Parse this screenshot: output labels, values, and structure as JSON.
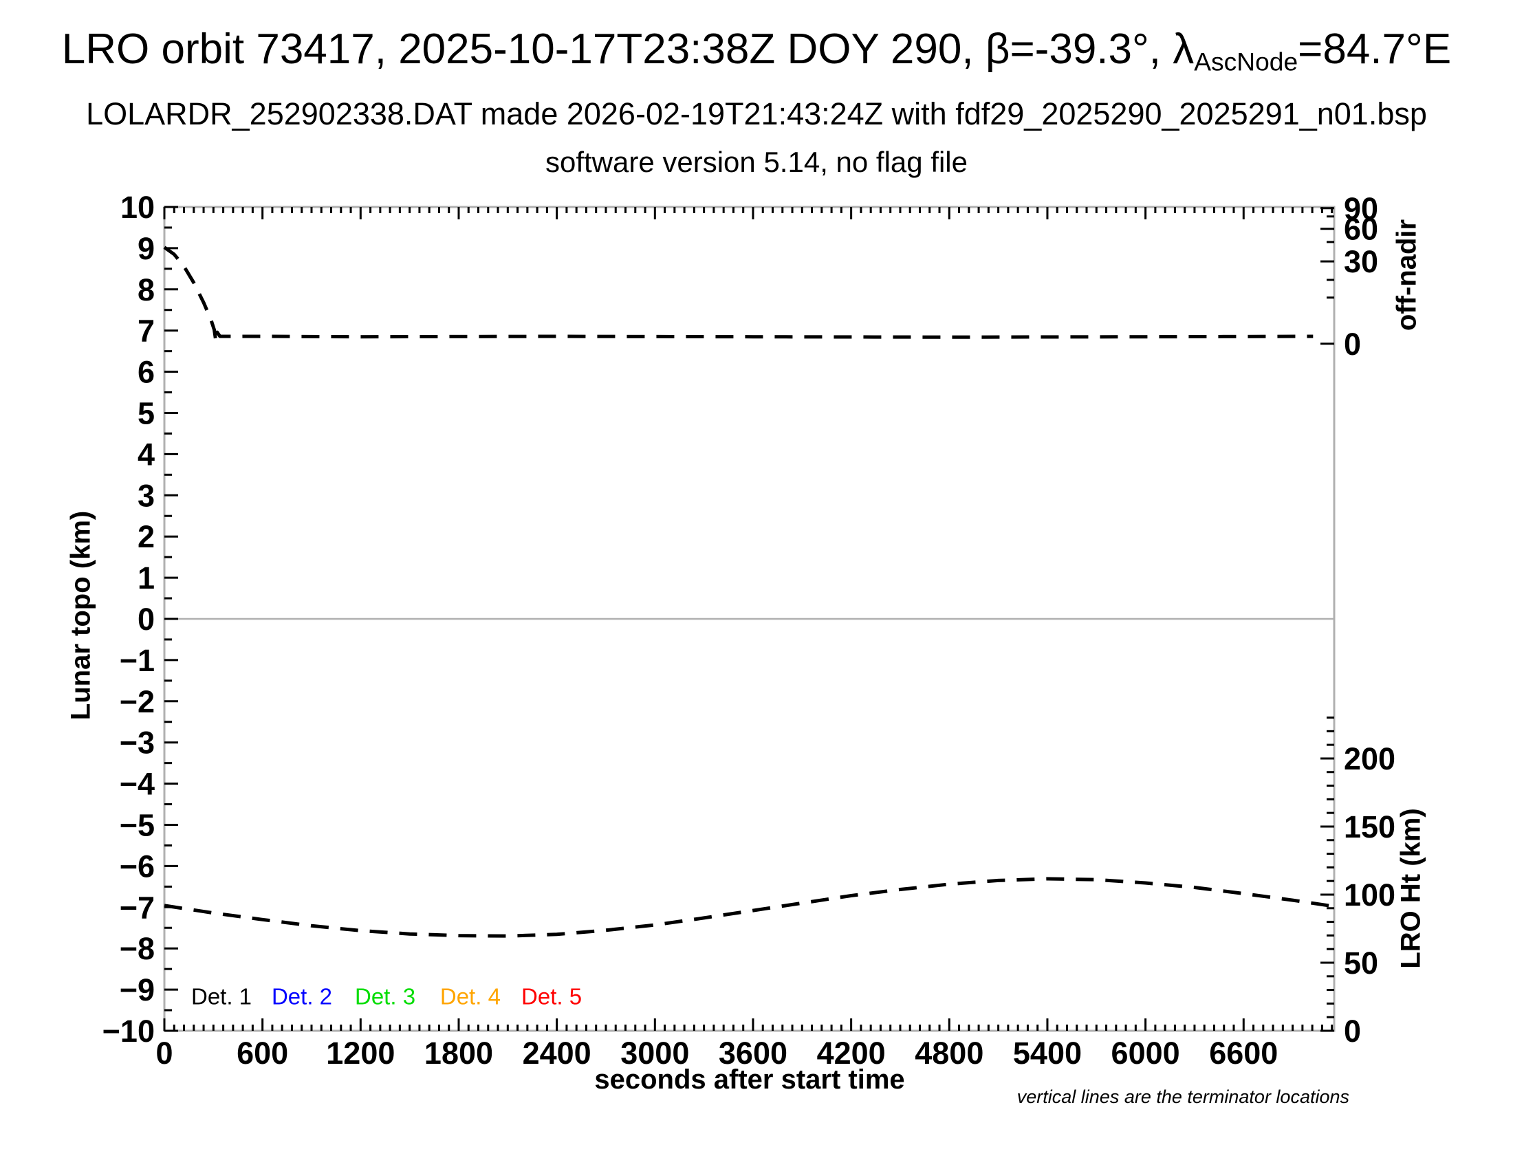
{
  "header": {
    "title_prefix": "LRO orbit 73417, 2025-10-17T23:38Z DOY 290, β=-39.3°, λ",
    "title_subscript": "AscNode",
    "title_suffix": "=84.7°E",
    "subtitle1": "LOLARDR_252902338.DAT made 2026-02-19T21:43:24Z with fdf29_2025290_2025291_n01.bsp",
    "subtitle2": "software version 5.14, no flag file"
  },
  "footnote": "vertical lines are the terminator locations",
  "chart_data": {
    "type": "line",
    "title": "LRO orbit 73417, 2025-10-17T23:38Z DOY 290, beta=-39.3deg, lambda_AscNode=84.7degE",
    "xlabel": "seconds after start time",
    "ylabel_left": "Lunar topo (km)",
    "ylabel_right_top": "off-nadir",
    "ylabel_right_bottom": "LRO Ht (km)",
    "xlim": [
      0,
      7154
    ],
    "ylim_left": [
      -10,
      10
    ],
    "grid": "zero-line-only",
    "frame_color": "#b0b0b0",
    "tick_color": "#000000",
    "x_major_ticks": [
      0,
      600,
      1200,
      1800,
      2400,
      3000,
      3600,
      4200,
      4800,
      5400,
      6000,
      6600
    ],
    "x_minor_step_s": 60,
    "left_major_step_km": 1,
    "left_minor_step_km": 0.5,
    "off_nadir_axis": {
      "note": "nonlinear angle scale on upper right axis; tick positions given in left-axis km units",
      "major_ticks": [
        {
          "label": "90",
          "pos_km": 9.97
        },
        {
          "label": "60",
          "pos_km": 9.47
        },
        {
          "label": "30",
          "pos_km": 8.68
        },
        {
          "label": "0",
          "pos_km": 6.68
        }
      ],
      "minor_tick_pos_km": [
        9.77,
        9.15,
        8.23,
        7.8
      ]
    },
    "lro_ht_axis": {
      "note": "lower right axis, linear; Ht 0 km maps to left-axis -10 km, scale 0.03306 left-km per Ht-km",
      "major_ticks_km": [
        200,
        150,
        100,
        50,
        0
      ],
      "minor_step_km": 10,
      "minor_max_km": 230,
      "km_to_topo_offset": -10,
      "km_to_topo_scale": 0.03306
    },
    "series": [
      {
        "name": "off-nadir angle (dashed, plotted against upper-right axis)",
        "color": "#000000",
        "style": "dashed",
        "points_topo_km": [
          [
            0,
            9.02
          ],
          [
            60,
            8.85
          ],
          [
            120,
            8.56
          ],
          [
            180,
            8.16
          ],
          [
            240,
            7.68
          ],
          [
            285,
            7.26
          ],
          [
            305,
            7.02
          ],
          [
            316,
            6.72
          ],
          [
            323,
            6.96
          ],
          [
            340,
            6.86
          ],
          [
            600,
            6.86
          ],
          [
            1200,
            6.85
          ],
          [
            2400,
            6.86
          ],
          [
            3600,
            6.85
          ],
          [
            4800,
            6.84
          ],
          [
            6000,
            6.85
          ],
          [
            7025,
            6.86
          ]
        ]
      },
      {
        "name": "LRO height (dashed, plotted against lower-right axis; ~92 km start, ~70 km min, ~112 km max)",
        "color": "#000000",
        "style": "dashed",
        "points_topo_km": [
          [
            0,
            -6.96
          ],
          [
            300,
            -7.14
          ],
          [
            600,
            -7.3
          ],
          [
            900,
            -7.45
          ],
          [
            1200,
            -7.57
          ],
          [
            1500,
            -7.65
          ],
          [
            1800,
            -7.69
          ],
          [
            2100,
            -7.7
          ],
          [
            2400,
            -7.66
          ],
          [
            2700,
            -7.56
          ],
          [
            3000,
            -7.43
          ],
          [
            3300,
            -7.26
          ],
          [
            3600,
            -7.08
          ],
          [
            3900,
            -6.9
          ],
          [
            4200,
            -6.72
          ],
          [
            4500,
            -6.57
          ],
          [
            4800,
            -6.44
          ],
          [
            5100,
            -6.35
          ],
          [
            5400,
            -6.31
          ],
          [
            5700,
            -6.33
          ],
          [
            6000,
            -6.41
          ],
          [
            6300,
            -6.52
          ],
          [
            6600,
            -6.67
          ],
          [
            6900,
            -6.83
          ],
          [
            7154,
            -6.98
          ]
        ]
      }
    ],
    "legend": {
      "y_km": -9.17,
      "items": [
        {
          "label": "Det. 1",
          "color": "#000000",
          "x_s": 164
        },
        {
          "label": "Det. 2",
          "color": "#0000ff",
          "x_s": 656
        },
        {
          "label": "Det. 3",
          "color": "#00dd00",
          "x_s": 1165
        },
        {
          "label": "Det. 4",
          "color": "#ffa500",
          "x_s": 1686
        },
        {
          "label": "Det. 5",
          "color": "#ff0000",
          "x_s": 2183
        }
      ]
    }
  }
}
